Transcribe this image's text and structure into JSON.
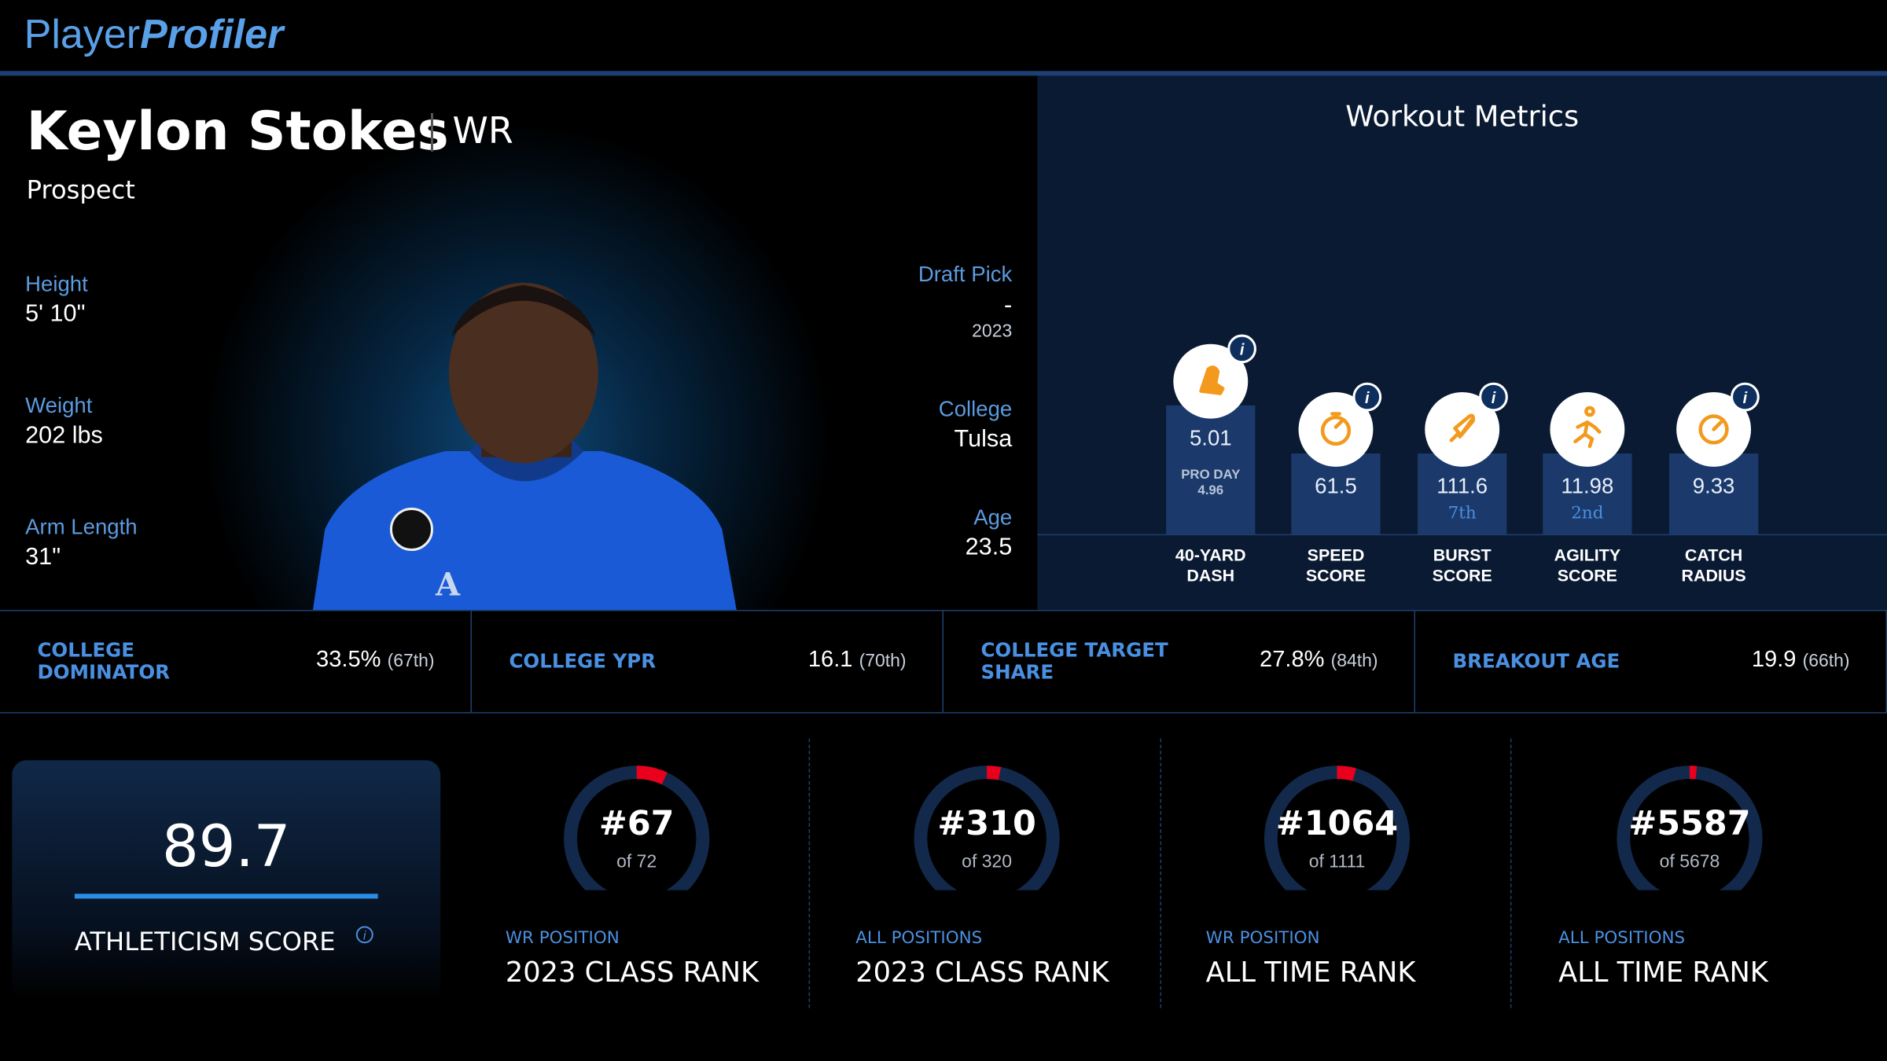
{
  "header": {
    "logo_a": "Player",
    "logo_b": "Profiler"
  },
  "player": {
    "name": "Keylon Stokes",
    "position": "WR",
    "status": "Prospect"
  },
  "bio_left": [
    {
      "label": "Height",
      "value": "5' 10\""
    },
    {
      "label": "Weight",
      "value": "202 lbs"
    },
    {
      "label": "Arm Length",
      "value": "31\""
    }
  ],
  "bio_right": [
    {
      "label": "Draft Pick",
      "value": "-",
      "sub": "2023"
    },
    {
      "label": "College",
      "value": "Tulsa"
    },
    {
      "label": "Age",
      "value": "23.5"
    }
  ],
  "workout": {
    "title": "Workout Metrics",
    "metrics": [
      {
        "label": "40-YARD DASH",
        "value": "5.01",
        "note": "PRO DAY",
        "note_value": "4.96"
      },
      {
        "label": "SPEED SCORE",
        "value": "61.5"
      },
      {
        "label": "BURST SCORE",
        "value": "111.6",
        "rank": "7th"
      },
      {
        "label": "AGILITY SCORE",
        "value": "11.98",
        "rank": "2nd"
      },
      {
        "label": "CATCH RADIUS",
        "value": "9.33"
      }
    ]
  },
  "stats": [
    {
      "label": "COLLEGE DOMINATOR",
      "value": "33.5%",
      "percentile": "(67th)"
    },
    {
      "label": "COLLEGE YPR",
      "value": "16.1",
      "percentile": "(70th)"
    },
    {
      "label": "COLLEGE TARGET SHARE",
      "value": "27.8%",
      "percentile": "(84th)"
    },
    {
      "label": "BREAKOUT AGE",
      "value": "19.9",
      "percentile": "(66th)"
    }
  ],
  "athleticism": {
    "value": "89.7",
    "label": "ATHLETICISM SCORE"
  },
  "ranks": [
    {
      "rank": {
        "value": 67,
        "label": "#67"
      },
      "total": 72,
      "total_label": "of 72",
      "subtitle": "WR POSITION",
      "title": "2023 CLASS RANK"
    },
    {
      "rank": {
        "value": 310,
        "label": "#310"
      },
      "total": 320,
      "total_label": "of 320",
      "subtitle": "ALL POSITIONS",
      "title": "2023 CLASS RANK"
    },
    {
      "rank": {
        "value": 1064,
        "label": "#1064"
      },
      "total": 1111,
      "total_label": "of 1111",
      "subtitle": "WR POSITION",
      "title": "ALL TIME RANK"
    },
    {
      "rank": {
        "value": 5587,
        "label": "#5587"
      },
      "total": 5678,
      "total_label": "of 5678",
      "subtitle": "ALL POSITIONS",
      "title": "ALL TIME RANK"
    }
  ]
}
